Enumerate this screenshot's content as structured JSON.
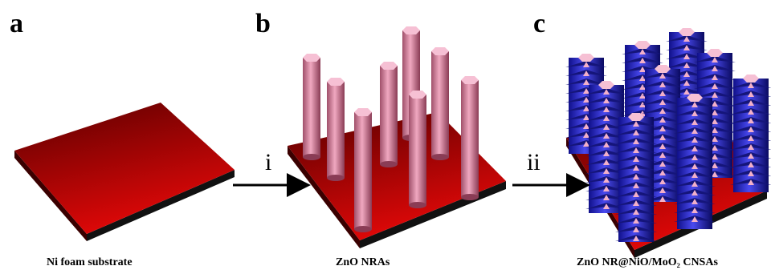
{
  "panels": [
    {
      "label": "a",
      "caption": "Ni foam substrate"
    },
    {
      "label": "b",
      "caption": "ZnO NRAs"
    },
    {
      "label": "c",
      "caption": "ZnO NR@NiO/MoO₂ CNSAs"
    }
  ],
  "arrows": [
    {
      "label": "i"
    },
    {
      "label": "ii"
    }
  ]
}
